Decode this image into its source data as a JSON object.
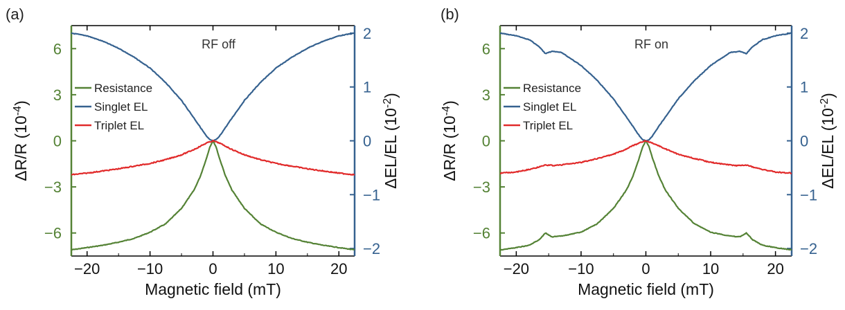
{
  "colors": {
    "resistance": "#548235",
    "singlet": "#35618f",
    "triplet": "#e12a2a",
    "left_axis": "#548235",
    "right_axis": "#35618f",
    "frame": "#000000"
  },
  "chart_data": [
    {
      "type": "line",
      "panel_label": "(a)",
      "annotation": "RF off",
      "xlabel": "Magnetic field (mT)",
      "ylabel_left": "ΔR/R (10⁻⁴)",
      "ylabel_right": "ΔEL/EL (10⁻²)",
      "xlim": [
        -22.5,
        22.5
      ],
      "ylim_left": [
        -7.5,
        7.5
      ],
      "ylim_right": [
        -2.14,
        2.14
      ],
      "xticks": [
        -20,
        -10,
        0,
        10,
        20
      ],
      "yticks_left": [
        -6,
        -3,
        0,
        3,
        6
      ],
      "yticks_right": [
        -2,
        -1,
        0,
        1,
        2
      ],
      "legend": {
        "position": "left",
        "entries": [
          "Resistance",
          "Singlet EL",
          "Triplet EL"
        ]
      },
      "series": [
        {
          "name": "Resistance",
          "axis": "left",
          "x": [
            -22.5,
            -20,
            -17.5,
            -15,
            -12.5,
            -10,
            -7.5,
            -5,
            -3,
            -2,
            -1,
            -0.5,
            0,
            0.5,
            1,
            2,
            3,
            5,
            7.5,
            10,
            12.5,
            15,
            17.5,
            20,
            22.5
          ],
          "y": [
            -7.1,
            -6.95,
            -6.8,
            -6.6,
            -6.35,
            -5.95,
            -5.4,
            -4.4,
            -3.2,
            -2.3,
            -1.1,
            -0.4,
            0,
            -0.4,
            -1.1,
            -2.3,
            -3.2,
            -4.4,
            -5.4,
            -5.95,
            -6.35,
            -6.6,
            -6.8,
            -6.95,
            -7.1
          ]
        },
        {
          "name": "Singlet EL",
          "axis": "right",
          "x": [
            -22.5,
            -20,
            -17.5,
            -15,
            -12.5,
            -10,
            -7.5,
            -5,
            -3,
            -2,
            -1,
            -0.5,
            0,
            0.5,
            1,
            2,
            3,
            5,
            7.5,
            10,
            12.5,
            15,
            17.5,
            20,
            22.5
          ],
          "y": [
            2.0,
            1.95,
            1.85,
            1.72,
            1.55,
            1.35,
            1.08,
            0.75,
            0.42,
            0.25,
            0.08,
            0.02,
            0,
            0.02,
            0.08,
            0.25,
            0.42,
            0.75,
            1.08,
            1.35,
            1.55,
            1.72,
            1.85,
            1.95,
            2.0
          ]
        },
        {
          "name": "Triplet EL",
          "axis": "right",
          "x": [
            -22.5,
            -20,
            -17.5,
            -15,
            -12.5,
            -10,
            -7.5,
            -5,
            -3,
            -2,
            -1,
            0,
            1,
            2,
            3,
            5,
            7.5,
            10,
            12.5,
            15,
            17.5,
            20,
            22.5
          ],
          "y": [
            -0.63,
            -0.6,
            -0.56,
            -0.52,
            -0.47,
            -0.42,
            -0.35,
            -0.26,
            -0.16,
            -0.1,
            -0.04,
            0,
            -0.04,
            -0.1,
            -0.16,
            -0.26,
            -0.35,
            -0.42,
            -0.47,
            -0.52,
            -0.56,
            -0.6,
            -0.63
          ]
        }
      ]
    },
    {
      "type": "line",
      "panel_label": "(b)",
      "annotation": "RF on",
      "xlabel": "Magnetic field (mT)",
      "ylabel_left": "ΔR/R (10⁻⁴)",
      "ylabel_right": "ΔEL/EL (10⁻²)",
      "xlim": [
        -22.5,
        22.5
      ],
      "ylim_left": [
        -7.5,
        7.5
      ],
      "ylim_right": [
        -2.14,
        2.14
      ],
      "xticks": [
        -20,
        -10,
        0,
        10,
        20
      ],
      "yticks_left": [
        -6,
        -3,
        0,
        3,
        6
      ],
      "yticks_right": [
        -2,
        -1,
        0,
        1,
        2
      ],
      "legend": {
        "position": "left",
        "entries": [
          "Resistance",
          "Singlet EL",
          "Triplet EL"
        ]
      },
      "series": [
        {
          "name": "Resistance",
          "axis": "left",
          "x": [
            -22.5,
            -20,
            -18,
            -16.5,
            -15.5,
            -14.5,
            -13,
            -10,
            -7.5,
            -5,
            -3,
            -2,
            -1,
            -0.5,
            0,
            0.5,
            1,
            2,
            3,
            5,
            7.5,
            10,
            13,
            14.5,
            15.5,
            16.5,
            18,
            20,
            22.5
          ],
          "y": [
            -7.1,
            -6.95,
            -6.8,
            -6.45,
            -6.0,
            -6.25,
            -6.2,
            -5.95,
            -5.4,
            -4.4,
            -3.2,
            -2.3,
            -1.1,
            -0.4,
            0,
            -0.4,
            -1.1,
            -2.3,
            -3.2,
            -4.4,
            -5.4,
            -5.95,
            -6.2,
            -6.25,
            -6.0,
            -6.45,
            -6.8,
            -6.95,
            -7.1
          ]
        },
        {
          "name": "Singlet EL",
          "axis": "right",
          "x": [
            -22.5,
            -20,
            -18,
            -16.5,
            -15.5,
            -14.5,
            -13,
            -10,
            -7.5,
            -5,
            -3,
            -2,
            -1,
            -0.5,
            0,
            0.5,
            1,
            2,
            3,
            5,
            7.5,
            10,
            13,
            14.5,
            15.5,
            16.5,
            18,
            20,
            22.5
          ],
          "y": [
            2.0,
            1.95,
            1.88,
            1.75,
            1.62,
            1.66,
            1.64,
            1.4,
            1.12,
            0.78,
            0.44,
            0.27,
            0.09,
            0.02,
            0,
            0.02,
            0.09,
            0.27,
            0.44,
            0.78,
            1.12,
            1.4,
            1.64,
            1.66,
            1.62,
            1.75,
            1.88,
            1.95,
            2.0
          ]
        },
        {
          "name": "Triplet EL",
          "axis": "right",
          "x": [
            -22.5,
            -20,
            -17.5,
            -15.5,
            -14,
            -12.5,
            -10,
            -7.5,
            -5,
            -3,
            -2,
            -1,
            0,
            1,
            2,
            3,
            5,
            7.5,
            10,
            12.5,
            14,
            15.5,
            17.5,
            20,
            22.5
          ],
          "y": [
            -0.6,
            -0.58,
            -0.52,
            -0.45,
            -0.46,
            -0.44,
            -0.4,
            -0.33,
            -0.25,
            -0.15,
            -0.09,
            -0.04,
            0,
            -0.04,
            -0.09,
            -0.15,
            -0.25,
            -0.33,
            -0.4,
            -0.44,
            -0.46,
            -0.45,
            -0.52,
            -0.58,
            -0.6
          ]
        }
      ]
    }
  ]
}
